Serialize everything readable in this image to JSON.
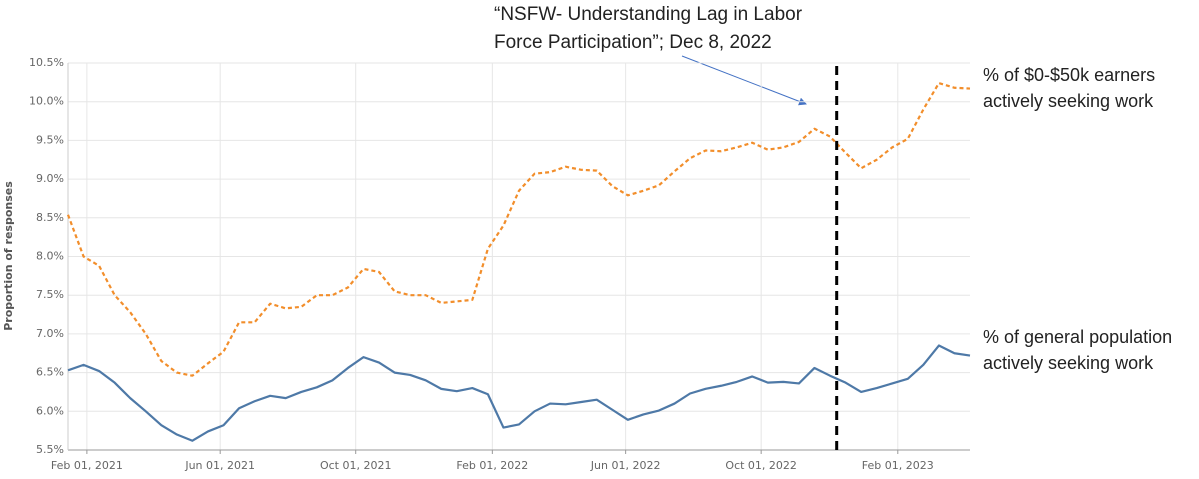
{
  "chart_data": {
    "type": "line",
    "y_label": "Proportion of responses",
    "annotation": {
      "lines": [
        "“NSFW- Understanding Lag in Labor",
        "Force Participation”; Dec 8, 2022"
      ],
      "x": "2022-12-08"
    },
    "x": [
      "2021-01-15",
      "2021-01-29",
      "2021-02-12",
      "2021-02-26",
      "2021-03-12",
      "2021-03-26",
      "2021-04-09",
      "2021-04-23",
      "2021-05-07",
      "2021-05-21",
      "2021-06-04",
      "2021-06-18",
      "2021-07-02",
      "2021-07-16",
      "2021-07-30",
      "2021-08-13",
      "2021-08-27",
      "2021-09-10",
      "2021-09-24",
      "2021-10-08",
      "2021-10-22",
      "2021-11-05",
      "2021-11-19",
      "2021-12-03",
      "2021-12-17",
      "2021-12-31",
      "2022-01-14",
      "2022-01-28",
      "2022-02-11",
      "2022-02-25",
      "2022-03-11",
      "2022-03-25",
      "2022-04-08",
      "2022-04-22",
      "2022-05-06",
      "2022-05-20",
      "2022-06-03",
      "2022-06-17",
      "2022-07-01",
      "2022-07-15",
      "2022-07-29",
      "2022-08-12",
      "2022-08-26",
      "2022-09-09",
      "2022-09-23",
      "2022-10-07",
      "2022-10-21",
      "2022-11-04",
      "2022-11-18",
      "2022-12-02",
      "2022-12-16",
      "2022-12-30",
      "2023-01-13",
      "2023-01-27",
      "2023-02-10",
      "2023-02-24",
      "2023-03-10",
      "2023-03-24",
      "2023-04-07"
    ],
    "series": [
      {
        "name": "% of $0-$50k earners actively seeking work",
        "color": "#f28e2b",
        "dashed": true,
        "values": [
          8.54,
          8.0,
          7.88,
          7.5,
          7.28,
          7.0,
          6.65,
          6.5,
          6.46,
          6.62,
          6.77,
          7.15,
          7.15,
          7.39,
          7.33,
          7.35,
          7.5,
          7.5,
          7.6,
          7.84,
          7.8,
          7.55,
          7.5,
          7.5,
          7.4,
          7.42,
          7.44,
          8.1,
          8.4,
          8.85,
          9.07,
          9.09,
          9.16,
          9.12,
          9.11,
          8.91,
          8.79,
          8.85,
          8.92,
          9.1,
          9.27,
          9.37,
          9.36,
          9.41,
          9.47,
          9.38,
          9.41,
          9.48,
          9.65,
          9.55,
          9.34,
          9.14,
          9.25,
          9.41,
          9.52,
          9.9,
          10.24,
          10.18,
          10.17
        ]
      },
      {
        "name": "% of general population actively seeking work",
        "color": "#4e79a7",
        "dashed": false,
        "values": [
          6.53,
          6.6,
          6.52,
          6.37,
          6.17,
          6.0,
          5.82,
          5.7,
          5.62,
          5.74,
          5.82,
          6.04,
          6.13,
          6.2,
          6.17,
          6.25,
          6.31,
          6.4,
          6.56,
          6.7,
          6.63,
          6.5,
          6.47,
          6.4,
          6.29,
          6.26,
          6.3,
          6.22,
          5.79,
          5.83,
          6.0,
          6.1,
          6.09,
          6.12,
          6.15,
          6.02,
          5.89,
          5.96,
          6.01,
          6.1,
          6.23,
          6.29,
          6.33,
          6.38,
          6.45,
          6.37,
          6.38,
          6.36,
          6.56,
          6.46,
          6.37,
          6.25,
          6.3,
          6.36,
          6.42,
          6.6,
          6.85,
          6.75,
          6.72
        ]
      }
    ],
    "xlim": [
      "2021-01-15",
      "2023-04-07"
    ],
    "xticks": [
      {
        "value": "2021-02-01",
        "label": "Feb 01, 2021"
      },
      {
        "value": "2021-06-01",
        "label": "Jun 01, 2021"
      },
      {
        "value": "2021-10-01",
        "label": "Oct 01, 2021"
      },
      {
        "value": "2022-02-01",
        "label": "Feb 01, 2022"
      },
      {
        "value": "2022-06-01",
        "label": "Jun 01, 2022"
      },
      {
        "value": "2022-10-01",
        "label": "Oct 01, 2022"
      },
      {
        "value": "2023-02-01",
        "label": "Feb 01, 2023"
      }
    ],
    "ylim": [
      5.5,
      10.5
    ],
    "yticks": [
      {
        "value": 5.5,
        "label": "5.5%"
      },
      {
        "value": 6.0,
        "label": "6.0%"
      },
      {
        "value": 6.5,
        "label": "6.5%"
      },
      {
        "value": 7.0,
        "label": "7.0%"
      },
      {
        "value": 7.5,
        "label": "7.5%"
      },
      {
        "value": 8.0,
        "label": "8.0%"
      },
      {
        "value": 8.5,
        "label": "8.5%"
      },
      {
        "value": 9.0,
        "label": "9.0%"
      },
      {
        "value": 9.5,
        "label": "9.5%"
      },
      {
        "value": 10.0,
        "label": "10.0%"
      },
      {
        "value": 10.5,
        "label": "10.5%"
      }
    ],
    "grid": true
  }
}
